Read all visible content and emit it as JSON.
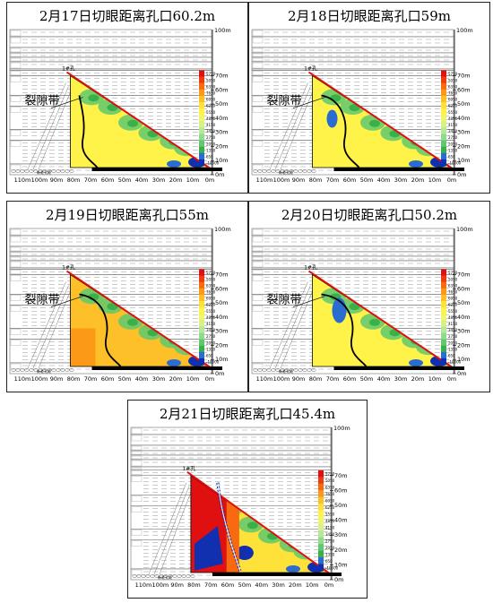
{
  "panels": [
    {
      "id": "p1",
      "title": "2月17日切眼距离孔口60.2m",
      "variant": 1,
      "crack_label": "裂隙带"
    },
    {
      "id": "p2",
      "title": "2月18日切眼距离孔口59m",
      "variant": 2,
      "crack_label": "裂隙带"
    },
    {
      "id": "p3",
      "title": "2月19日切眼距离孔口55m",
      "variant": 3,
      "crack_label": "裂隙带"
    },
    {
      "id": "p4",
      "title": "2月20日切眼距离孔口50.2m",
      "variant": 4,
      "crack_label": "裂隙带"
    },
    {
      "id": "p5",
      "title": "2月21日切眼距离孔口45.4m",
      "variant": 5,
      "crack_label": ""
    }
  ],
  "common": {
    "hole_label": "1#孔",
    "x_ticks": [
      "110m",
      "100m",
      "90m",
      "80m",
      "70m",
      "60m",
      "50m",
      "40m",
      "30m",
      "20m",
      "10m",
      "0m"
    ],
    "depth_top": "100m",
    "depth_ticks": [
      "70m",
      "60m",
      "50m",
      "40m",
      "30m",
      "20m",
      "10m",
      "0m"
    ],
    "legend_values": [
      "5750",
      "5050",
      "6350",
      "7650",
      "6950",
      "6250",
      "5550",
      "4850",
      "4150",
      "3450",
      "2750",
      "2050",
      "1350",
      "650",
      "-10000"
    ],
    "legend_colors": [
      "#e01010",
      "#f03a10",
      "#f86a10",
      "#fc9a18",
      "#fdc028",
      "#fee23a",
      "#fff34a",
      "#f0f56c",
      "#d6f08a",
      "#b8e896",
      "#8fdc8c",
      "#60c870",
      "#3ab04a",
      "#2a6cd0",
      "#1030b0"
    ],
    "bottom_note": "新老孔距"
  }
}
